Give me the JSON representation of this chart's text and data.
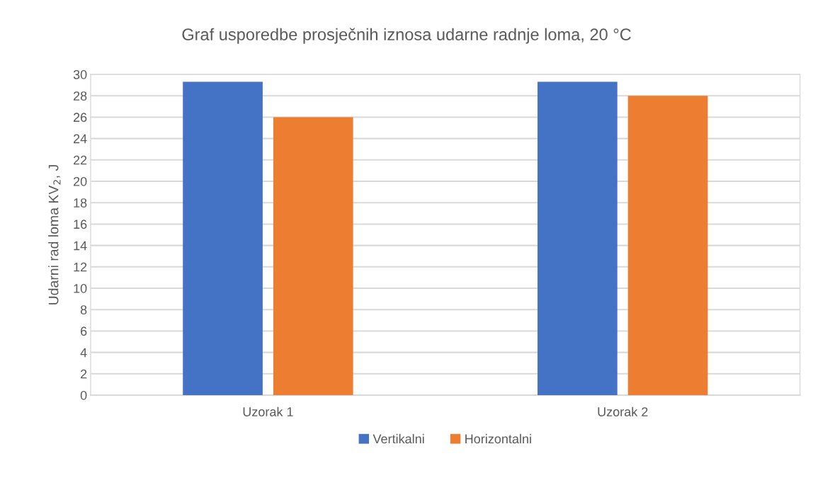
{
  "chart_data": {
    "type": "bar",
    "title": "Graf usporedbe prosječnih iznosa udarne radnje loma, 20 °C",
    "ylabel": "Udarni rad loma KV$_{2}$, J",
    "categories": [
      "Uzorak 1",
      "Uzorak 2"
    ],
    "series": [
      {
        "name": "Vertikalni",
        "color": "#4472c4",
        "values": [
          29.3,
          29.3
        ]
      },
      {
        "name": "Horizontalni",
        "color": "#ed7d31",
        "values": [
          26,
          28
        ]
      }
    ],
    "ylim": [
      0,
      30
    ],
    "yticks": [
      0,
      2,
      4,
      6,
      8,
      10,
      12,
      14,
      16,
      18,
      20,
      22,
      24,
      26,
      28,
      30
    ],
    "grid": "y",
    "legend": "bottom"
  }
}
